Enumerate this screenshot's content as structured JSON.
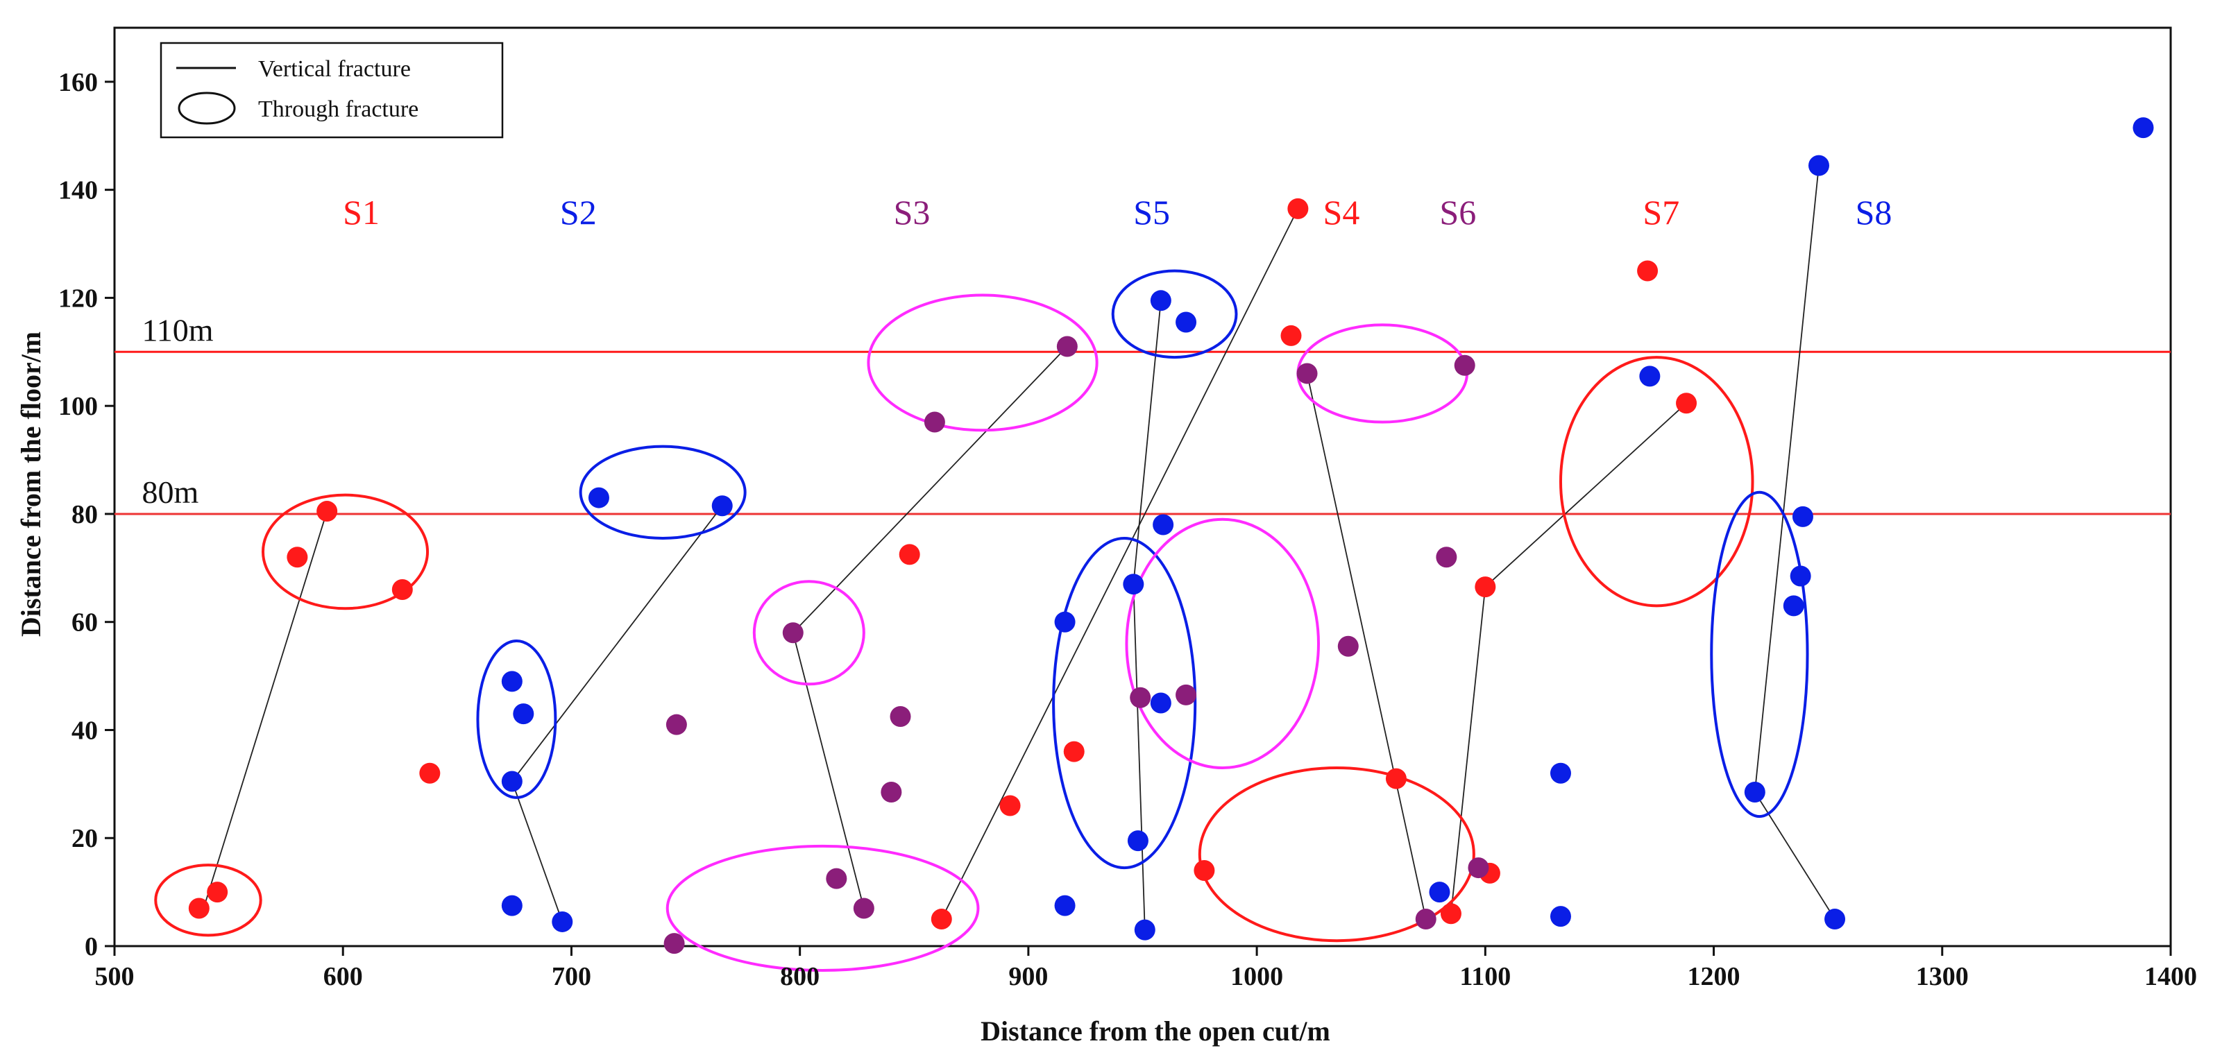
{
  "colors": {
    "red": "#ff1a1a",
    "blue": "#0a1ee6",
    "purple": "#8b1e7a",
    "magenta": "#ff2bff",
    "refline": "#ee3333"
  },
  "chart_data": {
    "type": "scatter",
    "title": "",
    "xlabel": "Distance from the open cut/m",
    "ylabel": "Distance from the floor/m",
    "xlim": [
      500,
      1400
    ],
    "ylim": [
      0,
      170
    ],
    "xticks": [
      "500",
      "600",
      "700",
      "800",
      "900",
      "1000",
      "1100",
      "1200",
      "1300",
      "1400"
    ],
    "yticks": [
      "0",
      "20",
      "40",
      "60",
      "80",
      "100",
      "120",
      "140",
      "160"
    ],
    "legend": {
      "position": "top-left",
      "entries": [
        {
          "label": "Vertical fracture",
          "symbol": "line"
        },
        {
          "label": "Through fracture",
          "symbol": "ellipse"
        }
      ]
    },
    "reference_lines": [
      {
        "label": "110m",
        "y": 110,
        "color": "red"
      },
      {
        "label": "80m",
        "y": 80,
        "color": "refline"
      }
    ],
    "sequence_labels": [
      {
        "text": "S1",
        "x": 608,
        "y": 136,
        "color": "red"
      },
      {
        "text": "S2",
        "x": 703,
        "y": 136,
        "color": "blue"
      },
      {
        "text": "S3",
        "x": 849,
        "y": 136,
        "color": "purple"
      },
      {
        "text": "S5",
        "x": 954,
        "y": 136,
        "color": "blue"
      },
      {
        "text": "S4",
        "x": 1037,
        "y": 136,
        "color": "red"
      },
      {
        "text": "S6",
        "x": 1088,
        "y": 136,
        "color": "purple"
      },
      {
        "text": "S7",
        "x": 1177,
        "y": 136,
        "color": "red"
      },
      {
        "text": "S8",
        "x": 1270,
        "y": 136,
        "color": "blue"
      }
    ],
    "series": [
      {
        "name": "red",
        "color": "red",
        "points": [
          [
            537,
            7
          ],
          [
            545,
            10
          ],
          [
            580,
            72
          ],
          [
            593,
            80.5
          ],
          [
            626,
            66
          ],
          [
            638,
            32
          ],
          [
            848,
            72.5
          ],
          [
            862,
            5
          ],
          [
            892,
            26
          ],
          [
            920,
            36
          ],
          [
            977,
            14
          ],
          [
            1015,
            113
          ],
          [
            1018,
            136.5
          ],
          [
            1061,
            31
          ],
          [
            1085,
            6
          ],
          [
            1100,
            66.5
          ],
          [
            1102,
            13.5
          ],
          [
            1171,
            125
          ],
          [
            1188,
            100.5
          ]
        ]
      },
      {
        "name": "blue",
        "color": "blue",
        "points": [
          [
            674,
            49
          ],
          [
            674,
            30.5
          ],
          [
            674,
            7.5
          ],
          [
            679,
            43
          ],
          [
            696,
            4.5
          ],
          [
            712,
            83
          ],
          [
            766,
            81.5
          ],
          [
            916,
            60
          ],
          [
            916,
            7.5
          ],
          [
            946,
            67
          ],
          [
            948,
            19.5
          ],
          [
            951,
            3
          ],
          [
            958,
            45
          ],
          [
            958,
            119.5
          ],
          [
            959,
            78
          ],
          [
            969,
            115.5
          ],
          [
            1080,
            10
          ],
          [
            1133,
            32
          ],
          [
            1133,
            5.5
          ],
          [
            1172,
            105.5
          ],
          [
            1218,
            28.5
          ],
          [
            1235,
            63
          ],
          [
            1238,
            68.5
          ],
          [
            1239,
            79.5
          ],
          [
            1246,
            144.5
          ],
          [
            1253,
            5
          ],
          [
            1388,
            151.5
          ]
        ]
      },
      {
        "name": "purple",
        "color": "purple",
        "points": [
          [
            745,
            0.5
          ],
          [
            746,
            41
          ],
          [
            797,
            58
          ],
          [
            816,
            12.5
          ],
          [
            828,
            7
          ],
          [
            840,
            28.5
          ],
          [
            844,
            42.5
          ],
          [
            859,
            97
          ],
          [
            917,
            111
          ],
          [
            949,
            46
          ],
          [
            969,
            46.5
          ],
          [
            1022,
            106
          ],
          [
            1040,
            55.5
          ],
          [
            1074,
            5
          ],
          [
            1083,
            72
          ],
          [
            1091,
            107.5
          ],
          [
            1097,
            14.5
          ]
        ]
      }
    ],
    "vertical_fractures": [
      [
        [
          539,
          7
        ],
        [
          593,
          80.5
        ]
      ],
      [
        [
          674,
          30.5
        ],
        [
          766,
          81.5
        ]
      ],
      [
        [
          674,
          30.5
        ],
        [
          696,
          4.5
        ]
      ],
      [
        [
          797,
          58
        ],
        [
          917,
          111
        ]
      ],
      [
        [
          797,
          58
        ],
        [
          828,
          7
        ]
      ],
      [
        [
          862,
          5
        ],
        [
          1018,
          136.5
        ]
      ],
      [
        [
          946,
          67
        ],
        [
          958,
          119.5
        ]
      ],
      [
        [
          946,
          67
        ],
        [
          951,
          3
        ]
      ],
      [
        [
          1022,
          106
        ],
        [
          1074,
          5
        ]
      ],
      [
        [
          1100,
          66.5
        ],
        [
          1188,
          100.5
        ]
      ],
      [
        [
          1100,
          66.5
        ],
        [
          1085,
          6
        ]
      ],
      [
        [
          1218,
          28.5
        ],
        [
          1246,
          144.5
        ]
      ],
      [
        [
          1218,
          28.5
        ],
        [
          1253,
          5
        ]
      ]
    ],
    "through_fractures": [
      {
        "color": "red",
        "cx": 541,
        "cy": 8.5,
        "rx": 23,
        "ry": 6.5,
        "rot": 0
      },
      {
        "color": "red",
        "cx": 601,
        "cy": 73,
        "rx": 36,
        "ry": 10.5,
        "rot": 0
      },
      {
        "color": "blue",
        "cx": 676,
        "cy": 42,
        "rx": 17,
        "ry": 14.5,
        "rot": 0
      },
      {
        "color": "blue",
        "cx": 740,
        "cy": 84,
        "rx": 36,
        "ry": 8.5,
        "rot": 0
      },
      {
        "color": "magenta",
        "cx": 804,
        "cy": 58,
        "rx": 24,
        "ry": 9.5,
        "rot": 0
      },
      {
        "color": "magenta",
        "cx": 880,
        "cy": 108,
        "rx": 50,
        "ry": 12.5,
        "rot": 0
      },
      {
        "color": "magenta",
        "cx": 810,
        "cy": 7,
        "rx": 68,
        "ry": 11.5,
        "rot": 0
      },
      {
        "color": "blue",
        "cx": 964,
        "cy": 117,
        "rx": 27,
        "ry": 8,
        "rot": 0
      },
      {
        "color": "blue",
        "cx": 942,
        "cy": 45,
        "rx": 31,
        "ry": 30.5,
        "rot": 0
      },
      {
        "color": "magenta",
        "cx": 985,
        "cy": 56,
        "rx": 42,
        "ry": 23,
        "rot": 0
      },
      {
        "color": "magenta",
        "cx": 1055,
        "cy": 106,
        "rx": 37,
        "ry": 9,
        "rot": 0
      },
      {
        "color": "red",
        "cx": 1035,
        "cy": 17,
        "rx": 60,
        "ry": 16,
        "rot": 0
      },
      {
        "color": "red",
        "cx": 1175,
        "cy": 86,
        "rx": 42,
        "ry": 23,
        "rot": 0
      },
      {
        "color": "blue",
        "cx": 1220,
        "cy": 54,
        "rx": 21,
        "ry": 30,
        "rot": 0
      }
    ]
  }
}
